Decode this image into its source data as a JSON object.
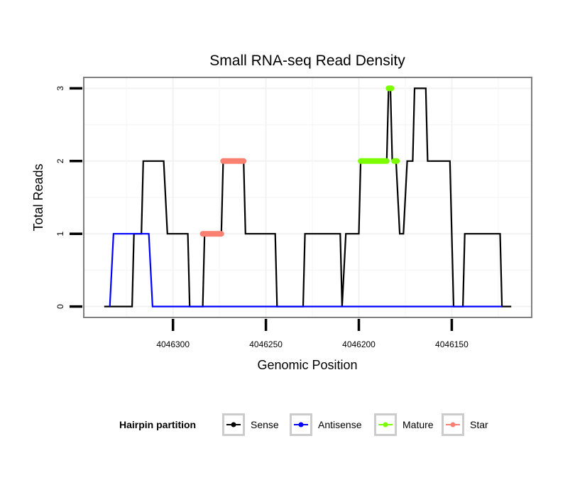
{
  "chart_data": {
    "type": "line",
    "title": "Small RNA-seq Read Density",
    "xlabel": "Genomic Position",
    "ylabel": "Total Reads",
    "x_reversed": true,
    "xlim": [
      4046348,
      4046107
    ],
    "ylim": [
      -0.15,
      3.15
    ],
    "x_ticks": [
      4046300,
      4046250,
      4046200,
      4046150
    ],
    "x_tick_labels": [
      "4046300",
      "4046250",
      "4046200",
      "4046150"
    ],
    "y_ticks": [
      0,
      1,
      2,
      3
    ],
    "y_tick_labels": [
      "0",
      "1",
      "2",
      "3"
    ],
    "grid": true,
    "legend": {
      "title": "Hairpin partition",
      "position": "bottom",
      "entries": [
        {
          "label": "Sense",
          "color": "#000000"
        },
        {
          "label": "Antisense",
          "color": "#0000ff"
        },
        {
          "label": "Mature",
          "color": "#7cfc00"
        },
        {
          "label": "Star",
          "color": "#fa8072"
        }
      ]
    },
    "series": [
      {
        "name": "Sense",
        "color": "#000000",
        "kind": "line",
        "x": [
          4046337,
          4046322,
          4046321,
          4046317,
          4046316,
          4046305,
          4046303,
          4046292,
          4046291,
          4046284,
          4046283,
          4046274,
          4046273,
          4046262,
          4046261,
          4046245,
          4046244,
          4046230,
          4046229,
          4046210,
          4046209,
          4046207,
          4046200,
          4046199,
          4046185,
          4046184,
          4046183,
          4046182,
          4046180,
          4046178,
          4046176,
          4046174,
          4046171,
          4046170,
          4046164,
          4046163,
          4046151,
          4046149,
          4046144,
          4046143,
          4046124,
          4046123,
          4046118
        ],
        "y": [
          0,
          0,
          1,
          1,
          2,
          2,
          1,
          1,
          0,
          0,
          1,
          1,
          2,
          2,
          1,
          1,
          0,
          0,
          1,
          1,
          0,
          1,
          1,
          2,
          2,
          3,
          3,
          2,
          2,
          1,
          1,
          2,
          2,
          3,
          3,
          2,
          2,
          0,
          0,
          1,
          1,
          0,
          0
        ]
      },
      {
        "name": "Antisense",
        "color": "#0000ff",
        "kind": "line",
        "x": [
          4046334,
          4046332,
          4046313,
          4046311,
          4046123
        ],
        "y": [
          0,
          1,
          1,
          0,
          0
        ]
      },
      {
        "name": "Mature",
        "color": "#7cfc00",
        "kind": "segments",
        "segments": [
          {
            "x": [
              4046199,
              4046185
            ],
            "y": 2
          },
          {
            "x": [
              4046184,
              4046182.5
            ],
            "y": 3
          },
          {
            "x": [
              4046181,
              4046179.5
            ],
            "y": 2
          }
        ]
      },
      {
        "name": "Star",
        "color": "#fa8072",
        "kind": "segments",
        "segments": [
          {
            "x": [
              4046284,
              4046274
            ],
            "y": 1
          },
          {
            "x": [
              4046273,
              4046262
            ],
            "y": 2
          }
        ]
      }
    ]
  }
}
